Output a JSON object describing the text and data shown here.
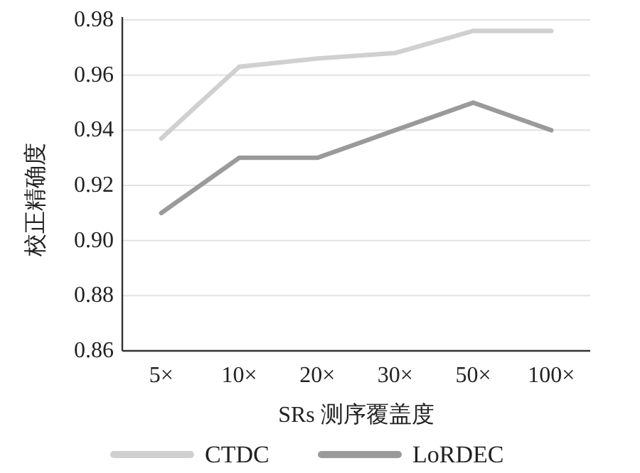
{
  "chart_data": {
    "type": "line",
    "xlabel": "SRs 测序覆盖度",
    "ylabel": "校正精确度",
    "categories": [
      "5×",
      "10×",
      "20×",
      "30×",
      "50×",
      "100×"
    ],
    "series": [
      {
        "name": "CTDC",
        "color": "#d0d0d0",
        "values": [
          0.937,
          0.963,
          0.966,
          0.968,
          0.976,
          0.976
        ]
      },
      {
        "name": "LoRDEC",
        "color": "#9a9a9a",
        "values": [
          0.91,
          0.93,
          0.93,
          0.94,
          0.95,
          0.94
        ]
      }
    ],
    "ylim": [
      0.86,
      0.98
    ],
    "yticks": [
      0.86,
      0.88,
      {
        "value": 0.9,
        "label": "0.90"
      },
      0.92,
      0.94,
      0.96,
      0.98
    ],
    "grid": "y",
    "legend": "bottom",
    "marker": "none",
    "line_style": "solid"
  }
}
